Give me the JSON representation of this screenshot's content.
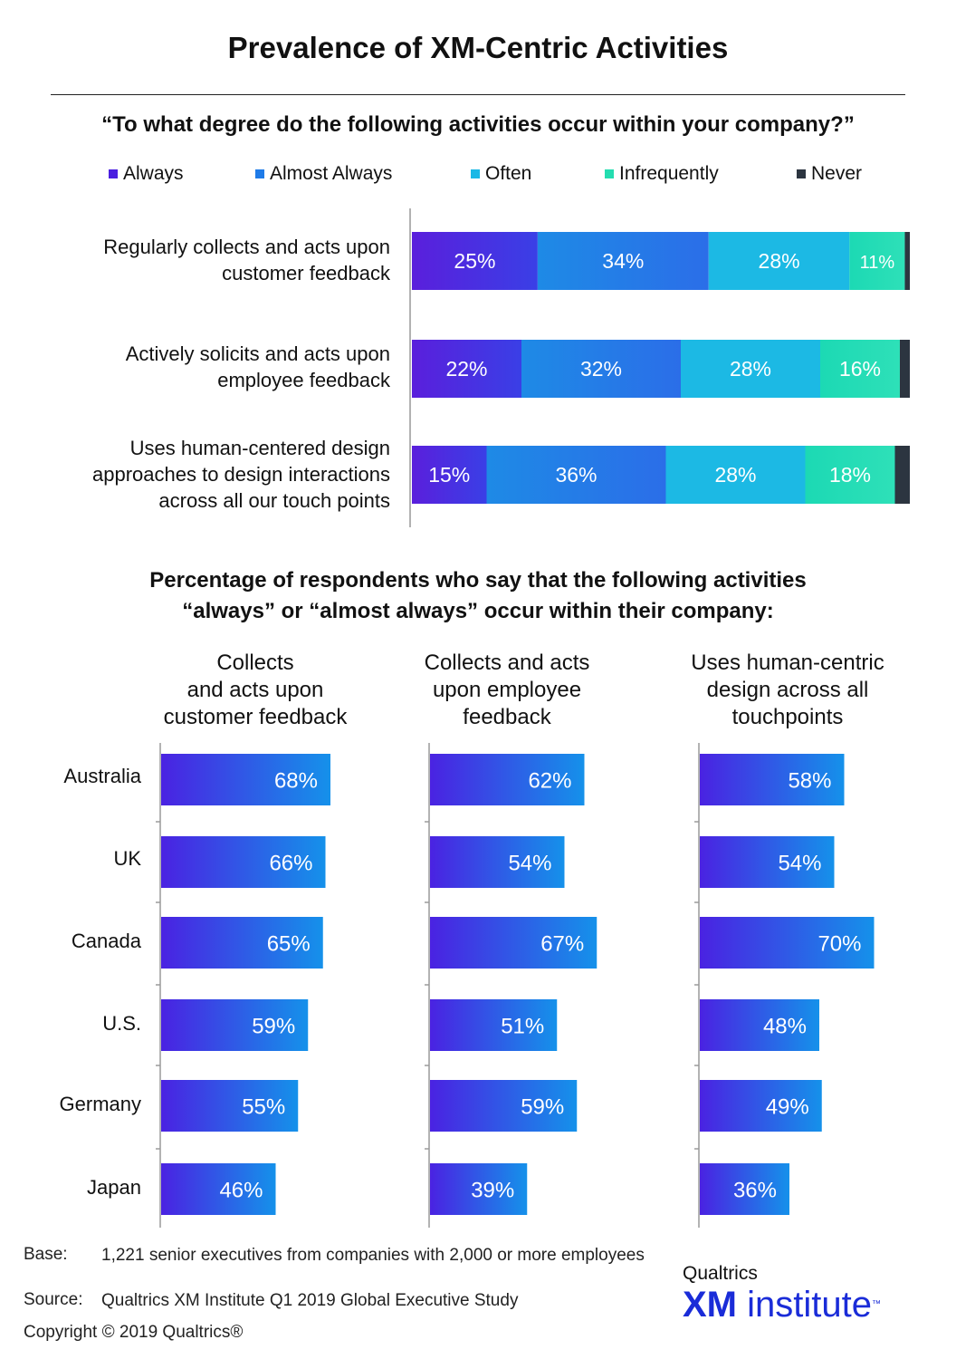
{
  "title": "Prevalence of XM-Centric Activities",
  "question": "“To what degree do the following activities occur within your company?”",
  "legend": [
    {
      "label": "Always",
      "color": "#4a1fe0"
    },
    {
      "label": "Almost Always",
      "color": "#1f7be8"
    },
    {
      "label": "Often",
      "color": "#1ab8e6"
    },
    {
      "label": "Infrequently",
      "color": "#24ddb0"
    },
    {
      "label": "Never",
      "color": "#2c3540"
    }
  ],
  "rows": [
    {
      "label": "Regularly collects and acts upon\ncustomer feedback"
    },
    {
      "label": "Actively solicits and acts upon\nemployee feedback"
    },
    {
      "label": "Uses human-centered design\napproaches to design interactions\nacross all our touch points"
    }
  ],
  "subtitle": "Percentage of respondents who say that the following activities\n“always” or “almost always” occur within their company:",
  "columns": [
    {
      "title": "Collects\nand acts upon\ncustomer feedback"
    },
    {
      "title": "Collects and acts\nupon employee\nfeedback"
    },
    {
      "title": "Uses human-centric\ndesign across all\ntouchpoints"
    }
  ],
  "countries": [
    "Australia",
    "UK",
    "Canada",
    "U.S.",
    "Germany",
    "Japan"
  ],
  "chart_data": [
    {
      "type": "bar",
      "orientation": "horizontal",
      "stacked": true,
      "categories": [
        "Regularly collects and acts upon customer feedback",
        "Actively solicits and acts upon employee feedback",
        "Uses human-centered design approaches to design interactions across all our touch points"
      ],
      "series": [
        {
          "name": "Always",
          "values": [
            25,
            22,
            15
          ],
          "labels": [
            "25%",
            "22%",
            "15%"
          ]
        },
        {
          "name": "Almost Always",
          "values": [
            34,
            32,
            36
          ],
          "labels": [
            "34%",
            "32%",
            "36%"
          ]
        },
        {
          "name": "Often",
          "values": [
            28,
            28,
            28
          ],
          "labels": [
            "28%",
            "28%",
            "28%"
          ]
        },
        {
          "name": "Infrequently",
          "values": [
            11,
            16,
            18
          ],
          "labels": [
            "11%",
            "16%",
            "18%"
          ]
        },
        {
          "name": "Never",
          "values": [
            1,
            2,
            3
          ],
          "labels": [
            "",
            "",
            ""
          ]
        }
      ],
      "legend": "top"
    },
    {
      "type": "bar",
      "orientation": "horizontal",
      "title": "Collects and acts upon customer feedback",
      "categories": [
        "Australia",
        "UK",
        "Canada",
        "U.S.",
        "Germany",
        "Japan"
      ],
      "values": [
        68,
        66,
        65,
        59,
        55,
        46
      ],
      "labels": [
        "68%",
        "66%",
        "65%",
        "59%",
        "55%",
        "46%"
      ]
    },
    {
      "type": "bar",
      "orientation": "horizontal",
      "title": "Collects and acts upon employee feedback",
      "categories": [
        "Australia",
        "UK",
        "Canada",
        "U.S.",
        "Germany",
        "Japan"
      ],
      "values": [
        62,
        54,
        67,
        51,
        59,
        39
      ],
      "labels": [
        "62%",
        "54%",
        "67%",
        "51%",
        "59%",
        "39%"
      ]
    },
    {
      "type": "bar",
      "orientation": "horizontal",
      "title": "Uses human-centric design across all touchpoints",
      "categories": [
        "Australia",
        "UK",
        "Canada",
        "U.S.",
        "Germany",
        "Japan"
      ],
      "values": [
        58,
        54,
        70,
        48,
        49,
        36
      ],
      "labels": [
        "58%",
        "54%",
        "70%",
        "48%",
        "49%",
        "36%"
      ]
    }
  ],
  "footer": {
    "base_label": "Base:",
    "base_text": "1,221 senior executives from companies with 2,000 or more employees",
    "source_label": "Source:",
    "source_text": "Qualtrics XM Institute Q1 2019 Global Executive Study",
    "copyright": "Copyright © 2019 Qualtrics®"
  },
  "logo": {
    "top": "Qualtrics",
    "xm": "XM",
    "institute": "institute",
    "tm": "™"
  }
}
